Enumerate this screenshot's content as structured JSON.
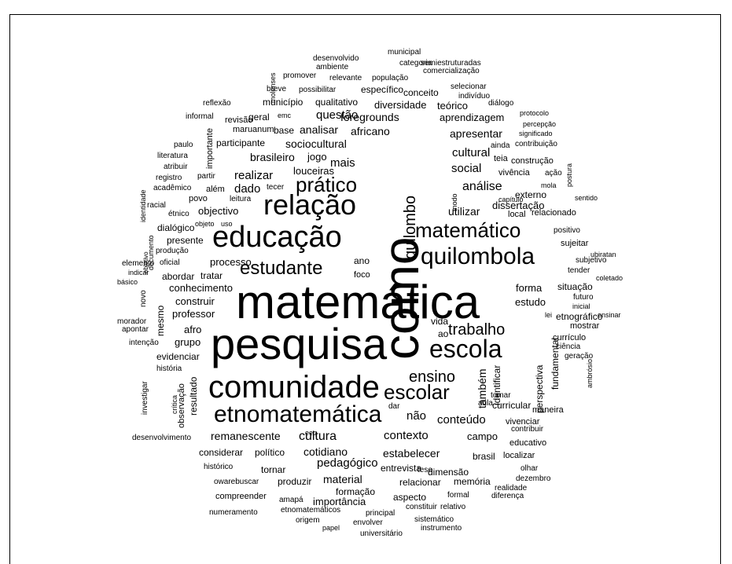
{
  "words": [
    "matemática",
    "pesquisa",
    "como",
    "comunidade",
    "educação",
    "relação",
    "etnomatemática",
    "quilombola",
    "escola",
    "matemático",
    "escolar",
    "estudante",
    "prático",
    "quilombo",
    "trabalho",
    "ensino",
    "cultural",
    "social",
    "análise",
    "sociocultural",
    "brasileiro",
    "realizar",
    "mais",
    "africano",
    "apresentar",
    "contexto",
    "pedagógico",
    "cotidiano",
    "conteúdo",
    "estabelecer",
    "não",
    "cultura",
    "remanescente",
    "também",
    "identificar",
    "dado",
    "objectivo",
    "utilizar",
    "forma",
    "estudo",
    "processo",
    "conhecimento",
    "professor",
    "construir",
    "grupo",
    "evidenciar",
    "afro",
    "vida",
    "ao",
    "ano",
    "foco",
    "abordar",
    "tratar",
    "analisar",
    "questão",
    "foregrounds",
    "aprendizagem",
    "base",
    "geral",
    "participante",
    "jogo",
    "louceiras",
    "diversidade",
    "teórico",
    "conceito",
    "específico",
    "qualitativo",
    "município",
    "revisão",
    "maruanum",
    "além",
    "povo",
    "partir",
    "leitura",
    "tecer",
    "dialógico",
    "presente",
    "produção",
    "oficial",
    "elemento",
    "indicar",
    "básico",
    "novo",
    "mesmo",
    "morador",
    "apontar",
    "intenção",
    "história",
    "investigar",
    "crítica",
    "observação",
    "resultado",
    "desenvolvimento",
    "considerar",
    "político",
    "eeq",
    "campo",
    "vivenciar",
    "educativo",
    "contribuir",
    "localizar",
    "brasil",
    "entrevista",
    "dimensão",
    "tese",
    "relacionar",
    "memória",
    "material",
    "formação",
    "importância",
    "aspecto",
    "formal",
    "diferença",
    "realidade",
    "dezembro",
    "olhar",
    "tornar",
    "produzir",
    "histórico",
    "owarebuscar",
    "compreender",
    "amapá",
    "etnomatemáticos",
    "principal",
    "constituir",
    "relativo",
    "numeramento",
    "origem",
    "envolver",
    "papel",
    "sistemático",
    "universitário",
    "instrumento",
    "curricular",
    "dar",
    "aula",
    "tomar",
    "maneira",
    "perspectiva",
    "fundamental",
    "currículo",
    "ciência",
    "geração",
    "ambrósio",
    "mostrar",
    "ensinar",
    "futuro",
    "inicial",
    "situação",
    "coletado",
    "tender",
    "subjetivo",
    "ubiratan",
    "sujeitar",
    "positivo",
    "relacionado",
    "local",
    "externo",
    "dissertação",
    "capítulo",
    "mola",
    "sentido",
    "modo",
    "vivência",
    "ação",
    "postura",
    "construção",
    "teia",
    "ainda",
    "contribuição",
    "significado",
    "percepção",
    "protocolo",
    "diálogo",
    "indivíduo",
    "selecionar",
    "comercialização",
    "semiestruturadas",
    "categoria",
    "municipal",
    "desenvolvido",
    "ambiente",
    "promover",
    "relevante",
    "população",
    "breve",
    "possibilitar",
    "reflexão",
    "molenses",
    "informal",
    "emc",
    "importante",
    "paulo",
    "literatura",
    "atribuir",
    "registro",
    "acadêmico",
    "racial",
    "étnico",
    "identidade",
    "objeto",
    "uso",
    "documento",
    "objetivo",
    "lei",
    "etnográfico"
  ]
}
